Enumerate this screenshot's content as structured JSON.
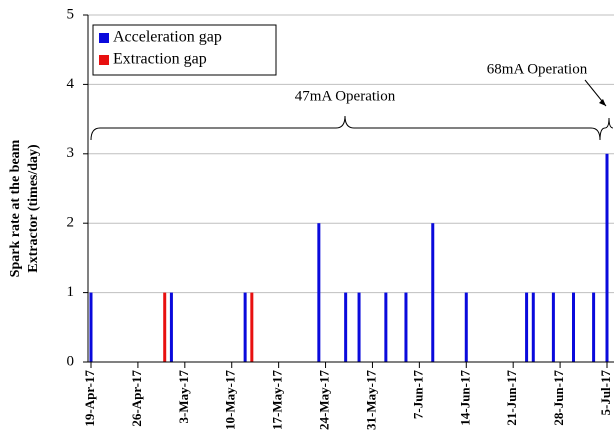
{
  "chart_data": {
    "type": "bar",
    "ylabel": [
      "Spark rate at the beam",
      "Extractor (times/day)"
    ],
    "ylim": [
      0,
      5
    ],
    "yticks": [
      0,
      1,
      2,
      3,
      4,
      5
    ],
    "grid": true,
    "legend": "upper left",
    "xlim": [
      "2017-04-19",
      "2017-07-05"
    ],
    "xticks": [
      {
        "value": "2017-04-19",
        "label": "19-Apr-17"
      },
      {
        "value": "2017-04-26",
        "label": "26-Apr-17"
      },
      {
        "value": "2017-05-03",
        "label": "3-May-17"
      },
      {
        "value": "2017-05-10",
        "label": "10-May-17"
      },
      {
        "value": "2017-05-17",
        "label": "17-May-17"
      },
      {
        "value": "2017-05-24",
        "label": "24-May-17"
      },
      {
        "value": "2017-05-31",
        "label": "31-May-17"
      },
      {
        "value": "2017-06-07",
        "label": "7-Jun-17"
      },
      {
        "value": "2017-06-14",
        "label": "14-Jun-17"
      },
      {
        "value": "2017-06-21",
        "label": "21-Jun-17"
      },
      {
        "value": "2017-06-28",
        "label": "28-Jun-17"
      },
      {
        "value": "2017-07-05",
        "label": "5-Jul-17"
      }
    ],
    "series": [
      {
        "name": "Acceleration gap",
        "color": "#0a0adc",
        "x": [
          "2017-04-19",
          "2017-05-01",
          "2017-05-12",
          "2017-05-23",
          "2017-05-27",
          "2017-05-29",
          "2017-06-02",
          "2017-06-05",
          "2017-06-09",
          "2017-06-14",
          "2017-06-23",
          "2017-06-24",
          "2017-06-27",
          "2017-06-30",
          "2017-07-03",
          "2017-07-05"
        ],
        "values": [
          1,
          1,
          1,
          2,
          1,
          1,
          1,
          1,
          2,
          1,
          1,
          1,
          1,
          1,
          1,
          3
        ]
      },
      {
        "name": "Extraction gap",
        "color": "#e81010",
        "x": [
          "2017-04-30",
          "2017-05-13"
        ],
        "values": [
          1,
          1
        ]
      }
    ],
    "annotations": [
      {
        "text": "47mA Operation"
      },
      {
        "text": "68mA Operation"
      }
    ]
  }
}
